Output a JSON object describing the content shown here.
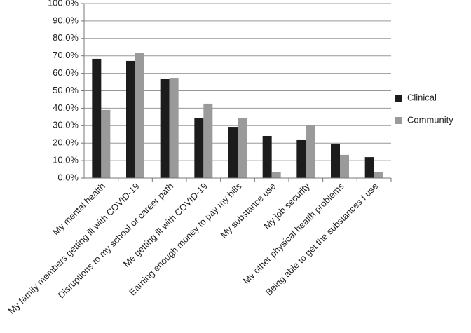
{
  "chart_data": {
    "type": "bar",
    "categories": [
      "My mental health",
      "My family members getting ill with COVID-19",
      "Disruptions to my school or career path",
      "Me getting ill with COVID-19",
      "Earning enough money to pay my bills",
      "My substance use",
      "My job security",
      "My other physical health problems",
      "Being able to get the substances I use"
    ],
    "series": [
      {
        "name": "Clinical",
        "color": "#1c1c1c",
        "values": [
          68.3,
          67.1,
          57.0,
          34.5,
          29.3,
          24.1,
          22.1,
          19.7,
          12.0
        ]
      },
      {
        "name": "Community",
        "color": "#9a9a9a",
        "values": [
          39.0,
          71.5,
          57.4,
          42.6,
          34.5,
          3.6,
          30.1,
          13.3,
          3.2
        ]
      }
    ],
    "ylim": [
      0,
      100
    ],
    "yticks": [
      {
        "value": 0,
        "label": "0.0%"
      },
      {
        "value": 10,
        "label": "10.0%"
      },
      {
        "value": 20,
        "label": "20.0%"
      },
      {
        "value": 30,
        "label": "30.0%"
      },
      {
        "value": 40,
        "label": "40.0%"
      },
      {
        "value": 50,
        "label": "50.0%"
      },
      {
        "value": 60,
        "label": "60.0%"
      },
      {
        "value": 70,
        "label": "70.0%"
      },
      {
        "value": 80,
        "label": "80.0%"
      },
      {
        "value": 90,
        "label": "90.0%"
      },
      {
        "value": 100,
        "label": "100.0%"
      }
    ],
    "grid": true,
    "legend": "right"
  }
}
